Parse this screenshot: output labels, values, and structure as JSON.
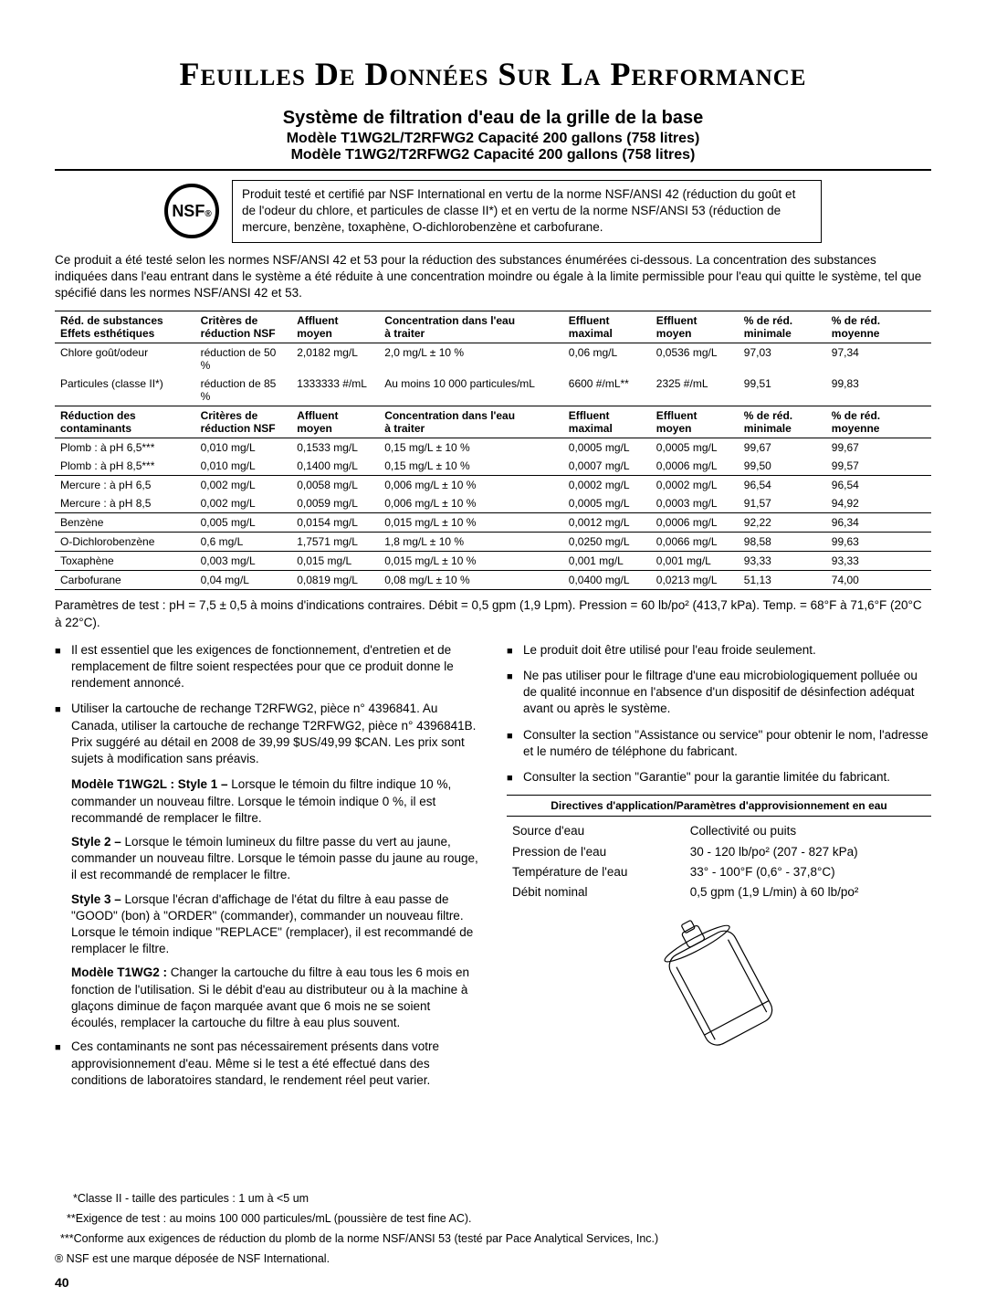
{
  "main_title": "Feuilles De Données Sur La Performance",
  "subtitle1": "Système de filtration d'eau de la grille de la base",
  "subtitle2a": "Modèle T1WG2L/T2RFWG2 Capacité 200 gallons (758 litres)",
  "subtitle2b": "Modèle T1WG2/T2RFWG2 Capacité 200 gallons (758 litres)",
  "nsf_logo": "NSF",
  "nsf_text": "Produit testé et certifié par NSF International en vertu de la norme NSF/ANSI 42 (réduction du goût et de l'odeur du chlore, et particules de classe II*) et en vertu de la norme NSF/ANSI 53 (réduction de mercure, benzène, toxaphène, O-dichlorobenzène et carbofurane.",
  "intro": "Ce produit a été testé selon les normes NSF/ANSI 42 et 53 pour la réduction des substances énumérées ci-dessous. La concentration des substances indiquées dans l'eau entrant dans le système a été réduite à une concentration moindre ou égale à la limite permissible pour l'eau qui quitte le système, tel que spécifié dans les normes NSF/ANSI 42 et 53.",
  "table": {
    "header_a": [
      "Réd. de substances Effets esthétiques",
      "Critères de réduction NSF",
      "Affluent moyen",
      "Concentration dans l'eau à traiter",
      "Effluent maximal",
      "Effluent moyen",
      "% de réd. minimale",
      "% de réd. moyenne"
    ],
    "rows_a": [
      [
        "Chlore goût/odeur",
        "réduction de 50 %",
        "2,0182 mg/L",
        "2,0 mg/L ± 10 %",
        "0,06 mg/L",
        "0,0536 mg/L",
        "97,03",
        "97,34"
      ],
      [
        "Particules (classe II*)",
        "réduction de 85 %",
        "1333333 #/mL",
        "Au moins 10 000 particules/mL",
        "6600 #/mL**",
        "2325 #/mL",
        "99,51",
        "99,83"
      ]
    ],
    "header_b": [
      "Réduction des contaminants",
      "Critères de réduction NSF",
      "Affluent moyen",
      "Concentration dans l'eau à traiter",
      "Effluent maximal",
      "Effluent moyen",
      "% de réd. minimale",
      "% de réd. moyenne"
    ],
    "rows_b": [
      [
        "Plomb : à pH 6,5***",
        "0,010 mg/L",
        "0,1533 mg/L",
        "0,15 mg/L ± 10 %",
        "0,0005 mg/L",
        "0,0005 mg/L",
        "99,67",
        "99,67"
      ],
      [
        "Plomb : à pH 8,5***",
        "0,010 mg/L",
        "0,1400 mg/L",
        "0,15 mg/L ± 10 %",
        "0,0007 mg/L",
        "0,0006 mg/L",
        "99,50",
        "99,57"
      ],
      [
        "Mercure : à pH 6,5",
        "0,002 mg/L",
        "0,0058 mg/L",
        "0,006 mg/L ± 10 %",
        "0,0002 mg/L",
        "0,0002 mg/L",
        "96,54",
        "96,54"
      ],
      [
        "Mercure : à pH 8,5",
        "0,002 mg/L",
        "0,0059 mg/L",
        "0,006 mg/L ± 10 %",
        "0,0005 mg/L",
        "0,0003 mg/L",
        "91,57",
        "94,92"
      ],
      [
        "Benzène",
        "0,005 mg/L",
        "0,0154 mg/L",
        "0,015 mg/L ± 10 %",
        "0,0012 mg/L",
        "0,0006 mg/L",
        "92,22",
        "96,34"
      ],
      [
        "O-Dichlorobenzène",
        "0,6 mg/L",
        "1,7571 mg/L",
        "1,8 mg/L ± 10 %",
        "0,0250 mg/L",
        "0,0066 mg/L",
        "98,58",
        "99,63"
      ],
      [
        "Toxaphène",
        "0,003 mg/L",
        "0,015 mg/L",
        "0,015 mg/L ± 10 %",
        "0,001 mg/L",
        "0,001 mg/L",
        "93,33",
        "93,33"
      ],
      [
        "Carbofurane",
        "0,04 mg/L",
        "0,0819 mg/L",
        "0,08 mg/L ± 10 %",
        "0,0400 mg/L",
        "0,0213 mg/L",
        "51,13",
        "74,00"
      ]
    ],
    "col_widths": [
      "16%",
      "11%",
      "10%",
      "21%",
      "10%",
      "10%",
      "10%",
      "12%"
    ]
  },
  "params": "Paramètres de test : pH = 7,5 ± 0,5 à moins d'indications contraires. Débit = 0,5 gpm (1,9 Lpm). Pression = 60 lb/po² (413,7 kPa). Temp. = 68°F à 71,6°F (20°C à 22°C).",
  "left_col": {
    "b1": "Il est essentiel que les exigences de fonctionnement, d'entretien et de remplacement de filtre soient respectées pour que ce produit donne le rendement annoncé.",
    "b2": "Utiliser la cartouche de rechange T2RFWG2, pièce n° 4396841. Au Canada, utiliser la cartouche de rechange T2RFWG2, pièce n° 4396841B. Prix suggéré au détail en 2008 de 39,99 $US/49,99 $CAN. Les prix sont sujets à modification sans préavis.",
    "p_model2l_label": "Modèle T1WG2L : Style 1 – ",
    "p_model2l": "Lorsque le témoin du filtre indique 10 %, commander un nouveau filtre. Lorsque le témoin indique 0 %, il est recommandé de remplacer le filtre.",
    "p_style2_label": "Style 2 – ",
    "p_style2": "Lorsque le témoin lumineux du filtre passe du vert au jaune, commander un nouveau filtre. Lorsque le témoin passe du jaune au rouge, il est recommandé de remplacer le filtre.",
    "p_style3_label": "Style 3 – ",
    "p_style3": "Lorsque l'écran d'affichage de l'état du filtre à eau passe de \"GOOD\" (bon) à \"ORDER\" (commander), commander un nouveau filtre. Lorsque le témoin indique \"REPLACE\" (remplacer), il est recommandé de remplacer le filtre.",
    "p_model2_label": "Modèle T1WG2 : ",
    "p_model2": "Changer la cartouche du filtre à eau tous les 6 mois en fonction de l'utilisation. Si le débit d'eau au distributeur ou à la machine à glaçons diminue de façon marquée avant que 6 mois ne se soient écoulés, remplacer la cartouche du filtre à eau plus souvent.",
    "b3": "Ces contaminants ne sont pas nécessairement présents dans votre approvisionnement d'eau. Même si le test a été effectué dans des conditions de laboratoires standard, le rendement réel peut varier."
  },
  "right_col": {
    "b1": "Le produit doit être utilisé pour l'eau froide seulement.",
    "b2": "Ne pas utiliser pour le filtrage d'une eau microbiologiquement polluée ou de qualité inconnue en l'absence d'un dispositif de désinfection adéquat avant ou après le système.",
    "b3": "Consulter la section \"Assistance ou service\" pour obtenir le nom, l'adresse et le numéro de téléphone du fabricant.",
    "b4": "Consulter la section \"Garantie\" pour la garantie limitée du fabricant.",
    "app_header": "Directives d'application/Paramètres d'approvisionnement en eau",
    "app_rows": [
      [
        "Source d'eau",
        "Collectivité ou puits"
      ],
      [
        "Pression de l'eau",
        "30 - 120 lb/po² (207 - 827 kPa)"
      ],
      [
        "Température de l'eau",
        "33° - 100°F (0,6° - 37,8°C)"
      ],
      [
        "Débit nominal",
        "0,5 gpm (1,9 L/min) à 60 lb/po²"
      ]
    ]
  },
  "footnotes": {
    "f1": "*Classe II - taille des particules : 1 um à <5 um",
    "f2": "**Exigence de test : au moins 100 000 particules/mL (poussière de test fine AC).",
    "f3": "***Conforme aux exigences de réduction du plomb de la norme NSF/ANSI 53 (testé par Pace Analytical Services, Inc.)",
    "f4": "® NSF est une marque déposée de NSF International."
  },
  "page_num": "40"
}
